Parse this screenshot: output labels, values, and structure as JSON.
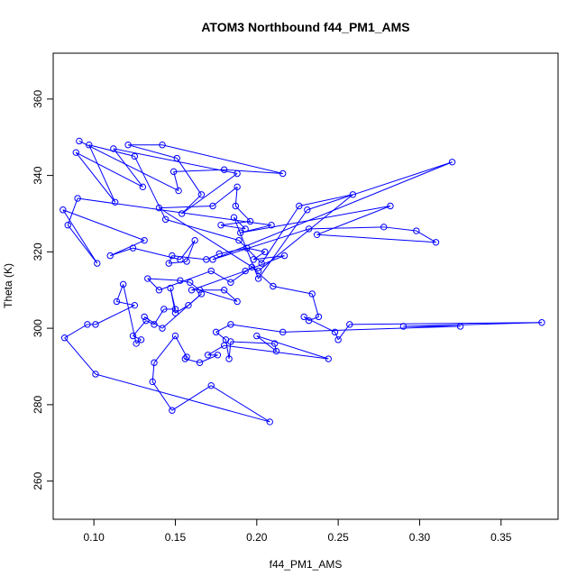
{
  "chart_data": {
    "type": "line",
    "title": "ATOM3 Northbound f44_PM1_AMS",
    "xlabel": "f44_PM1_AMS",
    "ylabel": "Theta (K)",
    "xlim": [
      0.075,
      0.385
    ],
    "ylim": [
      250,
      372
    ],
    "xticks": [
      0.1,
      0.15,
      0.2,
      0.25,
      0.3,
      0.35
    ],
    "xtick_labels": [
      "0.10",
      "0.15",
      "0.20",
      "0.25",
      "0.30",
      "0.35"
    ],
    "yticks": [
      260,
      280,
      300,
      320,
      340,
      360
    ],
    "ytick_labels": [
      "260",
      "280",
      "300",
      "320",
      "340",
      "360"
    ],
    "grid": false,
    "legend": "none",
    "colors": {
      "series": "#0000ff",
      "axes": "#000000",
      "background": "#ffffff"
    },
    "series": [
      {
        "marker": "open-circle",
        "points": [
          [
            0.091,
            349
          ],
          [
            0.152,
            336
          ],
          [
            0.149,
            341
          ],
          [
            0.18,
            341.5
          ],
          [
            0.216,
            340.5
          ],
          [
            0.142,
            348
          ],
          [
            0.121,
            348
          ],
          [
            0.151,
            344.5
          ],
          [
            0.166,
            335
          ],
          [
            0.154,
            330
          ],
          [
            0.188,
            340.5
          ],
          [
            0.112,
            347
          ],
          [
            0.13,
            337
          ],
          [
            0.089,
            346
          ],
          [
            0.113,
            333
          ],
          [
            0.097,
            348
          ],
          [
            0.125,
            345
          ],
          [
            0.144,
            328.5
          ],
          [
            0.189,
            323
          ],
          [
            0.203,
            317
          ],
          [
            0.226,
            332
          ],
          [
            0.259,
            335
          ],
          [
            0.201,
            315
          ],
          [
            0.14,
            331.5
          ],
          [
            0.173,
            332
          ],
          [
            0.188,
            337
          ],
          [
            0.187,
            332
          ],
          [
            0.196,
            328
          ],
          [
            0.178,
            327
          ],
          [
            0.193,
            326
          ],
          [
            0.186,
            329
          ],
          [
            0.201,
            313
          ],
          [
            0.231,
            331
          ],
          [
            0.32,
            343.5
          ],
          [
            0.173,
            318
          ],
          [
            0.232,
            326
          ],
          [
            0.278,
            326.5
          ],
          [
            0.298,
            325.5
          ],
          [
            0.31,
            322.5
          ],
          [
            0.237,
            324.5
          ],
          [
            0.282,
            332
          ],
          [
            0.19,
            325
          ],
          [
            0.209,
            327
          ],
          [
            0.09,
            334
          ],
          [
            0.084,
            327
          ],
          [
            0.102,
            317
          ],
          [
            0.081,
            331
          ],
          [
            0.131,
            323
          ],
          [
            0.11,
            319
          ],
          [
            0.124,
            321
          ],
          [
            0.153,
            318
          ],
          [
            0.162,
            323
          ],
          [
            0.157,
            317.5
          ],
          [
            0.146,
            317
          ],
          [
            0.148,
            319
          ],
          [
            0.169,
            318
          ],
          [
            0.177,
            319.5
          ],
          [
            0.194,
            321
          ],
          [
            0.205,
            320
          ],
          [
            0.198,
            318
          ],
          [
            0.217,
            319
          ],
          [
            0.193,
            315
          ],
          [
            0.16,
            310
          ],
          [
            0.18,
            310
          ],
          [
            0.188,
            307
          ],
          [
            0.165,
            310
          ],
          [
            0.159,
            312
          ],
          [
            0.153,
            312.5
          ],
          [
            0.133,
            313
          ],
          [
            0.14,
            310
          ],
          [
            0.172,
            315
          ],
          [
            0.184,
            312
          ],
          [
            0.197,
            316
          ],
          [
            0.21,
            311
          ],
          [
            0.234,
            309
          ],
          [
            0.238,
            303
          ],
          [
            0.232,
            302
          ],
          [
            0.229,
            303
          ],
          [
            0.248,
            299
          ],
          [
            0.25,
            297
          ],
          [
            0.257,
            301
          ],
          [
            0.375,
            301.5
          ],
          [
            0.29,
            300.5
          ],
          [
            0.325,
            300.5
          ],
          [
            0.216,
            299
          ],
          [
            0.184,
            301
          ],
          [
            0.175,
            299
          ],
          [
            0.181,
            297
          ],
          [
            0.183,
            292
          ],
          [
            0.184,
            296.5
          ],
          [
            0.211,
            296
          ],
          [
            0.212,
            294
          ],
          [
            0.2,
            298
          ],
          [
            0.244,
            292
          ],
          [
            0.18,
            295.5
          ],
          [
            0.17,
            293
          ],
          [
            0.176,
            293
          ],
          [
            0.165,
            291
          ],
          [
            0.156,
            292
          ],
          [
            0.157,
            292.5
          ],
          [
            0.15,
            298
          ],
          [
            0.137,
            291
          ],
          [
            0.136,
            286
          ],
          [
            0.148,
            278.5
          ],
          [
            0.172,
            285
          ],
          [
            0.208,
            275.5
          ],
          [
            0.101,
            288
          ],
          [
            0.082,
            297.5
          ],
          [
            0.096,
            301
          ],
          [
            0.101,
            301
          ],
          [
            0.125,
            306
          ],
          [
            0.114,
            307
          ],
          [
            0.118,
            311.5
          ],
          [
            0.126,
            296
          ],
          [
            0.129,
            297
          ],
          [
            0.124,
            298
          ],
          [
            0.132,
            302
          ],
          [
            0.137,
            301
          ],
          [
            0.143,
            305
          ],
          [
            0.15,
            305
          ],
          [
            0.147,
            310.5
          ],
          [
            0.15,
            304
          ],
          [
            0.158,
            306
          ],
          [
            0.166,
            309
          ],
          [
            0.142,
            300
          ],
          [
            0.131,
            303
          ]
        ]
      }
    ]
  }
}
